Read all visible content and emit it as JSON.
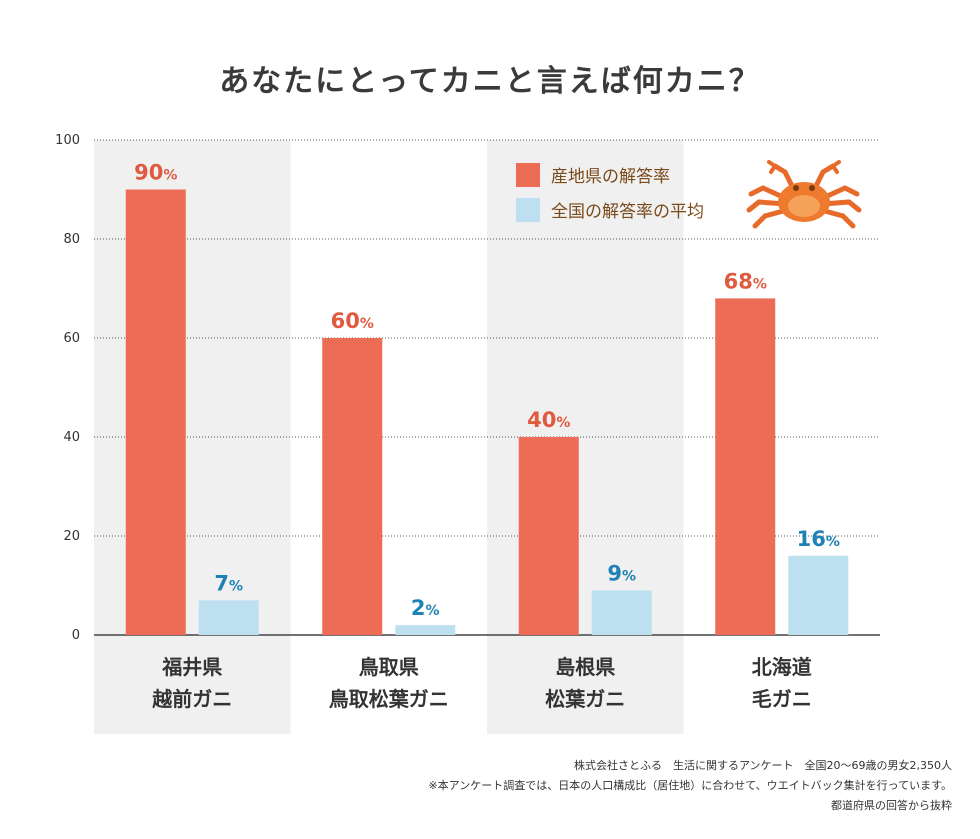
{
  "chart_data": {
    "type": "bar",
    "title": "あなたにとってカニと言えば何カニ？",
    "categories": [
      {
        "line1": "福井県",
        "line2": "越前ガニ"
      },
      {
        "line1": "鳥取県",
        "line2": "鳥取松葉ガニ"
      },
      {
        "line1": "島根県",
        "line2": "松葉ガニ"
      },
      {
        "line1": "北海道",
        "line2": "毛ガニ"
      }
    ],
    "series": [
      {
        "name": "産地県の解答率",
        "values": [
          90,
          60,
          40,
          68
        ],
        "color": "#ec6c56",
        "label_color": "#e05a40"
      },
      {
        "name": "全国の解答率の平均",
        "values": [
          7,
          2,
          9,
          16
        ],
        "color": "#bde0f0",
        "label_color": "#1f82b5"
      }
    ],
    "value_suffix": "%",
    "ylim": [
      0,
      100
    ],
    "yticks": [
      0,
      20,
      40,
      60,
      80,
      100
    ],
    "grid": true,
    "legend_position": "top-right",
    "shaded_categories": [
      0,
      2
    ],
    "shade_color": "#f0f0f0"
  },
  "notes": {
    "line1": "株式会社さとふる　生活に関するアンケート　全国20～69歳の男女2,350人",
    "line2": "※本アンケート調査では、日本の人口構成比（居住地）に合わせて、ウエイトバック集計を行っています。",
    "line3": "都道府県の回答から抜粋"
  },
  "icons": {
    "crab": "crab-icon"
  }
}
